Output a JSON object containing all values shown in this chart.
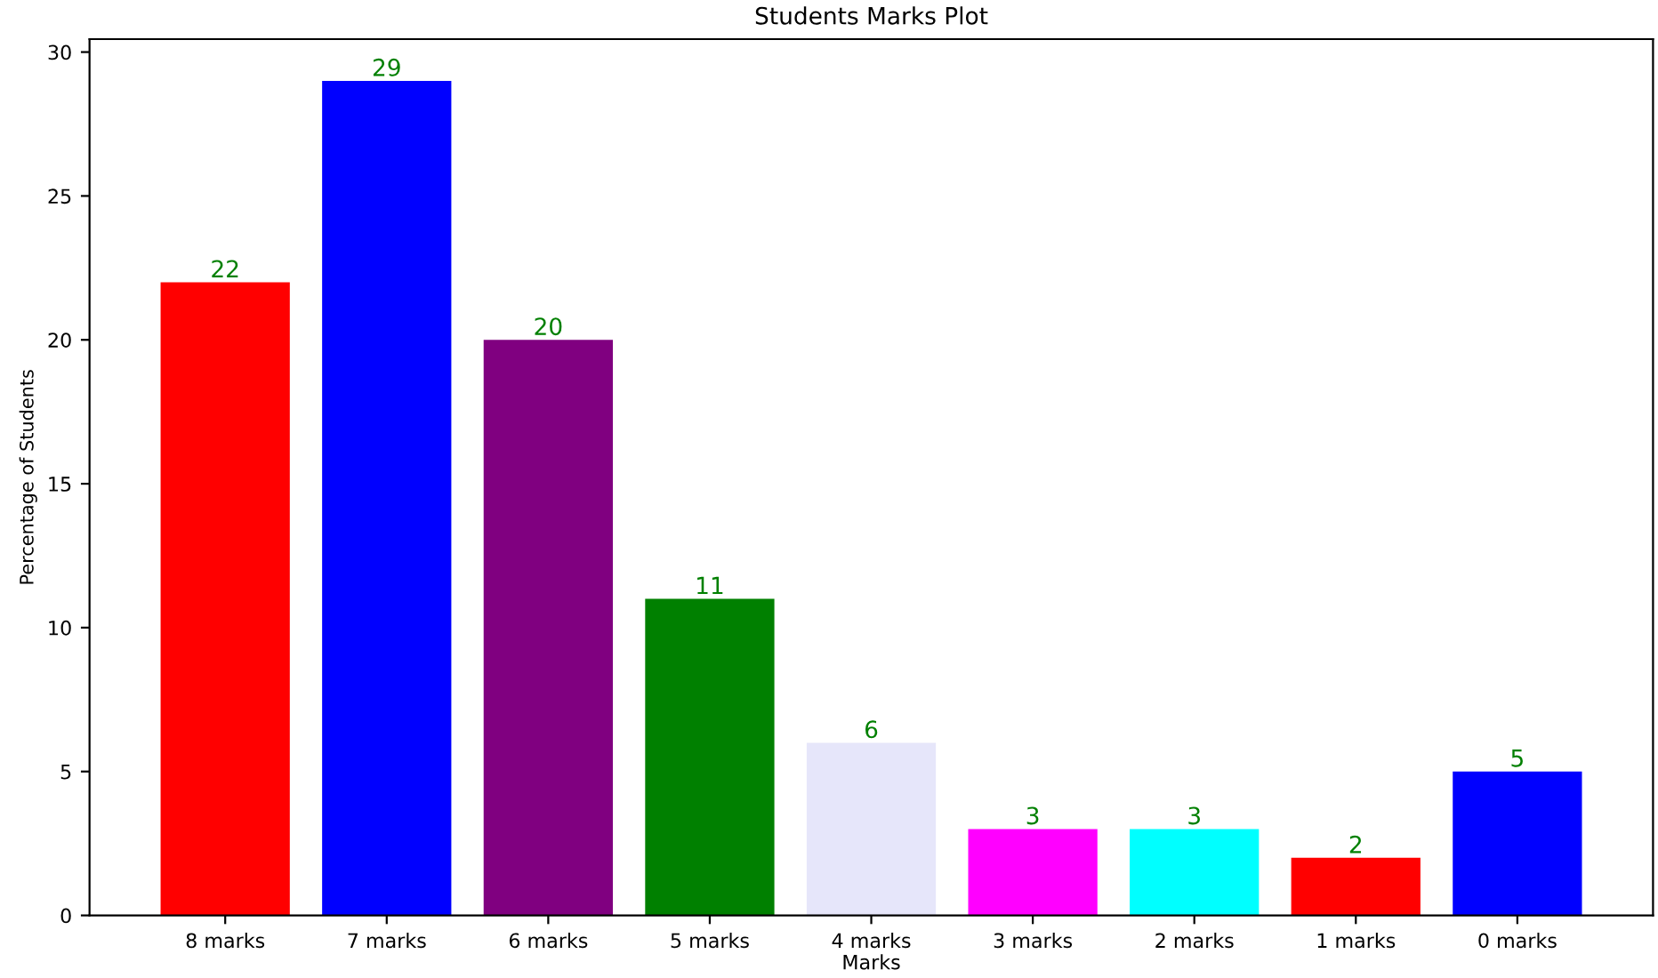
{
  "chart_data": {
    "type": "bar",
    "title": "Students Marks Plot",
    "xlabel": "Marks",
    "ylabel": "Percentage of Students",
    "categories": [
      "8 marks",
      "7 marks",
      "6 marks",
      "5 marks",
      "4 marks",
      "3 marks",
      "2 marks",
      "1 marks",
      "0 marks"
    ],
    "values": [
      22,
      29,
      20,
      11,
      6,
      3,
      3,
      2,
      5
    ],
    "colors": [
      "#ff0000",
      "#0000ff",
      "#800080",
      "#008000",
      "#e6e6fa",
      "#ff00ff",
      "#00ffff",
      "#ff0000",
      "#0000ff"
    ],
    "ylim": [
      0,
      30.45
    ],
    "yticks": [
      0,
      5,
      10,
      15,
      20,
      25,
      30
    ],
    "data_labels": true,
    "grid": false
  }
}
